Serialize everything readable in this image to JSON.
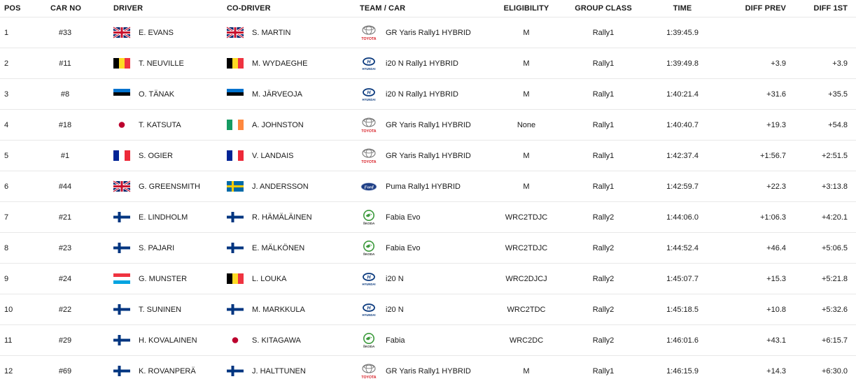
{
  "headers": {
    "pos": "POS",
    "car_no": "CAR NO",
    "driver": "DRIVER",
    "co_driver": "CO-DRIVER",
    "team_car": "TEAM / CAR",
    "eligibility": "ELIGIBILITY",
    "group_class": "GROUP CLASS",
    "time": "TIME",
    "diff_prev": "DIFF PREV",
    "diff_1st": "DIFF 1ST"
  },
  "rows": [
    {
      "pos": "1",
      "car_no": "#33",
      "driver": "E. EVANS",
      "driver_flag": "gb-flag",
      "co_driver": "S. MARTIN",
      "co_flag": "gb-flag",
      "team_logo": "toyota-logo",
      "car": "GR Yaris Rally1 HYBRID",
      "eligibility": "M",
      "group_class": "Rally1",
      "time": "1:39:45.9",
      "diff_prev": "",
      "diff_1st": ""
    },
    {
      "pos": "2",
      "car_no": "#11",
      "driver": "T. NEUVILLE",
      "driver_flag": "be-flag",
      "co_driver": "M. WYDAEGHE",
      "co_flag": "be-flag",
      "team_logo": "hyundai-logo",
      "car": "i20 N Rally1 HYBRID",
      "eligibility": "M",
      "group_class": "Rally1",
      "time": "1:39:49.8",
      "diff_prev": "+3.9",
      "diff_1st": "+3.9"
    },
    {
      "pos": "3",
      "car_no": "#8",
      "driver": "O. TÄNAK",
      "driver_flag": "ee-flag",
      "co_driver": "M. JÄRVEOJA",
      "co_flag": "ee-flag",
      "team_logo": "hyundai-logo",
      "car": "i20 N Rally1 HYBRID",
      "eligibility": "M",
      "group_class": "Rally1",
      "time": "1:40:21.4",
      "diff_prev": "+31.6",
      "diff_1st": "+35.5"
    },
    {
      "pos": "4",
      "car_no": "#18",
      "driver": "T. KATSUTA",
      "driver_flag": "jp-flag",
      "co_driver": "A. JOHNSTON",
      "co_flag": "ie-flag",
      "team_logo": "toyota-logo",
      "car": "GR Yaris Rally1 HYBRID",
      "eligibility": "None",
      "group_class": "Rally1",
      "time": "1:40:40.7",
      "diff_prev": "+19.3",
      "diff_1st": "+54.8"
    },
    {
      "pos": "5",
      "car_no": "#1",
      "driver": "S. OGIER",
      "driver_flag": "fr-flag",
      "co_driver": "V. LANDAIS",
      "co_flag": "fr-flag",
      "team_logo": "toyota-logo",
      "car": "GR Yaris Rally1 HYBRID",
      "eligibility": "M",
      "group_class": "Rally1",
      "time": "1:42:37.4",
      "diff_prev": "+1:56.7",
      "diff_1st": "+2:51.5"
    },
    {
      "pos": "6",
      "car_no": "#44",
      "driver": "G. GREENSMITH",
      "driver_flag": "gb-flag",
      "co_driver": "J. ANDERSSON",
      "co_flag": "se-flag",
      "team_logo": "ford-logo",
      "car": "Puma Rally1 HYBRID",
      "eligibility": "M",
      "group_class": "Rally1",
      "time": "1:42:59.7",
      "diff_prev": "+22.3",
      "diff_1st": "+3:13.8"
    },
    {
      "pos": "7",
      "car_no": "#21",
      "driver": "E. LINDHOLM",
      "driver_flag": "fi-flag",
      "co_driver": "R. HÄMÄLÄINEN",
      "co_flag": "fi-flag",
      "team_logo": "skoda-logo",
      "car": "Fabia Evo",
      "eligibility": "WRC2TDJC",
      "group_class": "Rally2",
      "time": "1:44:06.0",
      "diff_prev": "+1:06.3",
      "diff_1st": "+4:20.1"
    },
    {
      "pos": "8",
      "car_no": "#23",
      "driver": "S. PAJARI",
      "driver_flag": "fi-flag",
      "co_driver": "E. MÄLKÖNEN",
      "co_flag": "fi-flag",
      "team_logo": "skoda-logo",
      "car": "Fabia Evo",
      "eligibility": "WRC2TDJC",
      "group_class": "Rally2",
      "time": "1:44:52.4",
      "diff_prev": "+46.4",
      "diff_1st": "+5:06.5"
    },
    {
      "pos": "9",
      "car_no": "#24",
      "driver": "G. MUNSTER",
      "driver_flag": "lu-flag",
      "co_driver": "L. LOUKA",
      "co_flag": "be-flag",
      "team_logo": "hyundai-logo",
      "car": "i20 N",
      "eligibility": "WRC2DJCJ",
      "group_class": "Rally2",
      "time": "1:45:07.7",
      "diff_prev": "+15.3",
      "diff_1st": "+5:21.8"
    },
    {
      "pos": "10",
      "car_no": "#22",
      "driver": "T. SUNINEN",
      "driver_flag": "fi-flag",
      "co_driver": "M. MARKKULA",
      "co_flag": "fi-flag",
      "team_logo": "hyundai-logo",
      "car": "i20 N",
      "eligibility": "WRC2TDC",
      "group_class": "Rally2",
      "time": "1:45:18.5",
      "diff_prev": "+10.8",
      "diff_1st": "+5:32.6"
    },
    {
      "pos": "11",
      "car_no": "#29",
      "driver": "H. KOVALAINEN",
      "driver_flag": "fi-flag",
      "co_driver": "S. KITAGAWA",
      "co_flag": "jp-flag",
      "team_logo": "skoda-logo",
      "car": "Fabia",
      "eligibility": "WRC2DC",
      "group_class": "Rally2",
      "time": "1:46:01.6",
      "diff_prev": "+43.1",
      "diff_1st": "+6:15.7"
    },
    {
      "pos": "12",
      "car_no": "#69",
      "driver": "K. ROVANPERÄ",
      "driver_flag": "fi-flag",
      "co_driver": "J. HALTTUNEN",
      "co_flag": "fi-flag",
      "team_logo": "toyota-logo",
      "car": "GR Yaris Rally1 HYBRID",
      "eligibility": "M",
      "group_class": "Rally1",
      "time": "1:46:15.9",
      "diff_prev": "+14.3",
      "diff_1st": "+6:30.0"
    }
  ],
  "logo_text": {
    "toyota-logo": "TOYOTA",
    "hyundai-logo": "HYUNDAI",
    "ford-logo": "Ford",
    "skoda-logo": "ŠKODA"
  },
  "colors": {
    "toyota_red": "#d71921",
    "hyundai_blue": "#0b3a7e",
    "ford_blue": "#1f3f86",
    "skoda_green": "#3c9a3c",
    "row_border": "#e8e8e8"
  }
}
